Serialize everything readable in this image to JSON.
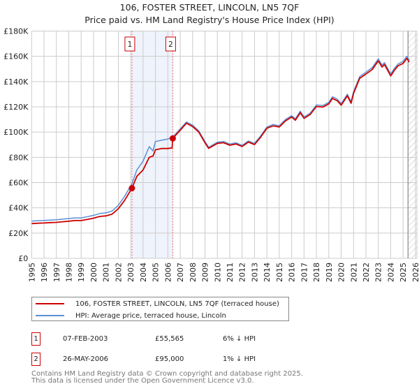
{
  "chart_data": {
    "type": "line",
    "title": "106, FOSTER STREET, LINCOLN, LN5 7QF",
    "subtitle": "Price paid vs. HM Land Registry's House Price Index (HPI)",
    "xlabel": "",
    "ylabel": "",
    "xlim": [
      1995,
      2026.1
    ],
    "ylim": [
      0,
      180000
    ],
    "grid": true,
    "x_ticks": [
      "1995",
      "1996",
      "1997",
      "1998",
      "1999",
      "2000",
      "2001",
      "2002",
      "2003",
      "2004",
      "2005",
      "2006",
      "2007",
      "2008",
      "2009",
      "2010",
      "2011",
      "2012",
      "2013",
      "2014",
      "2015",
      "2016",
      "2017",
      "2018",
      "2019",
      "2020",
      "2021",
      "2022",
      "2023",
      "2024",
      "2025",
      "2026"
    ],
    "y_ticks": [
      {
        "value": 0,
        "label": "£0"
      },
      {
        "value": 20000,
        "label": "£20K"
      },
      {
        "value": 40000,
        "label": "£40K"
      },
      {
        "value": 60000,
        "label": "£60K"
      },
      {
        "value": 80000,
        "label": "£80K"
      },
      {
        "value": 100000,
        "label": "£100K"
      },
      {
        "value": 120000,
        "label": "£120K"
      },
      {
        "value": 140000,
        "label": "£140K"
      },
      {
        "value": 160000,
        "label": "£160K"
      },
      {
        "value": 180000,
        "label": "£180K"
      }
    ],
    "x": [
      1995.0,
      1995.5,
      1996.0,
      1996.5,
      1997.0,
      1997.5,
      1998.0,
      1998.5,
      1999.0,
      1999.5,
      2000.0,
      2000.5,
      2001.0,
      2001.5,
      2002.0,
      2002.5,
      2003.1,
      2003.5,
      2004.0,
      2004.5,
      2004.8,
      2005.0,
      2005.5,
      2006.0,
      2006.35,
      2006.4,
      2007.0,
      2007.5,
      2008.0,
      2008.5,
      2009.0,
      2009.3,
      2010.0,
      2010.5,
      2011.0,
      2011.5,
      2012.0,
      2012.5,
      2013.0,
      2013.5,
      2014.0,
      2014.5,
      2015.0,
      2015.5,
      2016.0,
      2016.3,
      2016.7,
      2017.0,
      2017.5,
      2018.0,
      2018.5,
      2019.0,
      2019.3,
      2019.7,
      2020.0,
      2020.5,
      2020.8,
      2021.0,
      2021.5,
      2022.0,
      2022.5,
      2023.0,
      2023.3,
      2023.5,
      2024.0,
      2024.3,
      2024.6,
      2025.0,
      2025.3,
      2025.5
    ],
    "series": [
      {
        "name": "106, FOSTER STREET, LINCOLN, LN5 7QF (terraced house)",
        "color": "#cc0000",
        "values": [
          27500,
          27800,
          28000,
          28300,
          28500,
          29000,
          29400,
          29900,
          29900,
          30800,
          31800,
          33200,
          33600,
          35000,
          39300,
          45800,
          55565,
          65000,
          70000,
          80000,
          81000,
          86000,
          87000,
          87000,
          87500,
          95000,
          101500,
          107000,
          104400,
          100000,
          91600,
          87100,
          91100,
          91600,
          89600,
          90600,
          88600,
          92100,
          90100,
          96000,
          103000,
          104900,
          104000,
          108900,
          111900,
          109400,
          115300,
          110900,
          113900,
          120300,
          119800,
          122300,
          126700,
          124700,
          121300,
          128700,
          122800,
          130700,
          142600,
          146000,
          149500,
          156400,
          151500,
          153500,
          144500,
          149000,
          152500,
          154400,
          158400,
          155400
        ]
      },
      {
        "name": "HPI: Average price, terraced house, Lincoln",
        "color": "#5b8fd4",
        "values": [
          29500,
          29800,
          30000,
          30300,
          30500,
          31000,
          31500,
          32000,
          32000,
          33000,
          34000,
          35500,
          36000,
          37500,
          42000,
          49000,
          59000,
          70000,
          77000,
          88500,
          85000,
          92500,
          93500,
          94500,
          95800,
          96000,
          102500,
          108000,
          105500,
          101000,
          92500,
          88000,
          92000,
          92500,
          90500,
          91500,
          89500,
          93000,
          91000,
          97000,
          104000,
          106000,
          105000,
          110000,
          113000,
          110500,
          116500,
          112000,
          115000,
          121500,
          121000,
          123500,
          128000,
          126000,
          122500,
          130000,
          124000,
          132000,
          144000,
          147500,
          151000,
          158000,
          153000,
          155000,
          146000,
          150500,
          154000,
          156000,
          160000,
          157000
        ]
      }
    ],
    "sales": [
      {
        "id": "1",
        "x": 2003.1,
        "date": "07-FEB-2003",
        "price": 55565,
        "price_label": "£55,565",
        "hpi_diff": "6% ↓ HPI"
      },
      {
        "id": "2",
        "x": 2006.4,
        "date": "26-MAY-2006",
        "price": 95000,
        "price_label": "£95,000",
        "hpi_diff": "1% ↓ HPI"
      }
    ],
    "forecast_start": 2025.4,
    "legend_position": "below"
  },
  "footer": {
    "line1": "Contains HM Land Registry data © Crown copyright and database right 2025.",
    "line2": "This data is licensed under the Open Government Licence v3.0."
  }
}
